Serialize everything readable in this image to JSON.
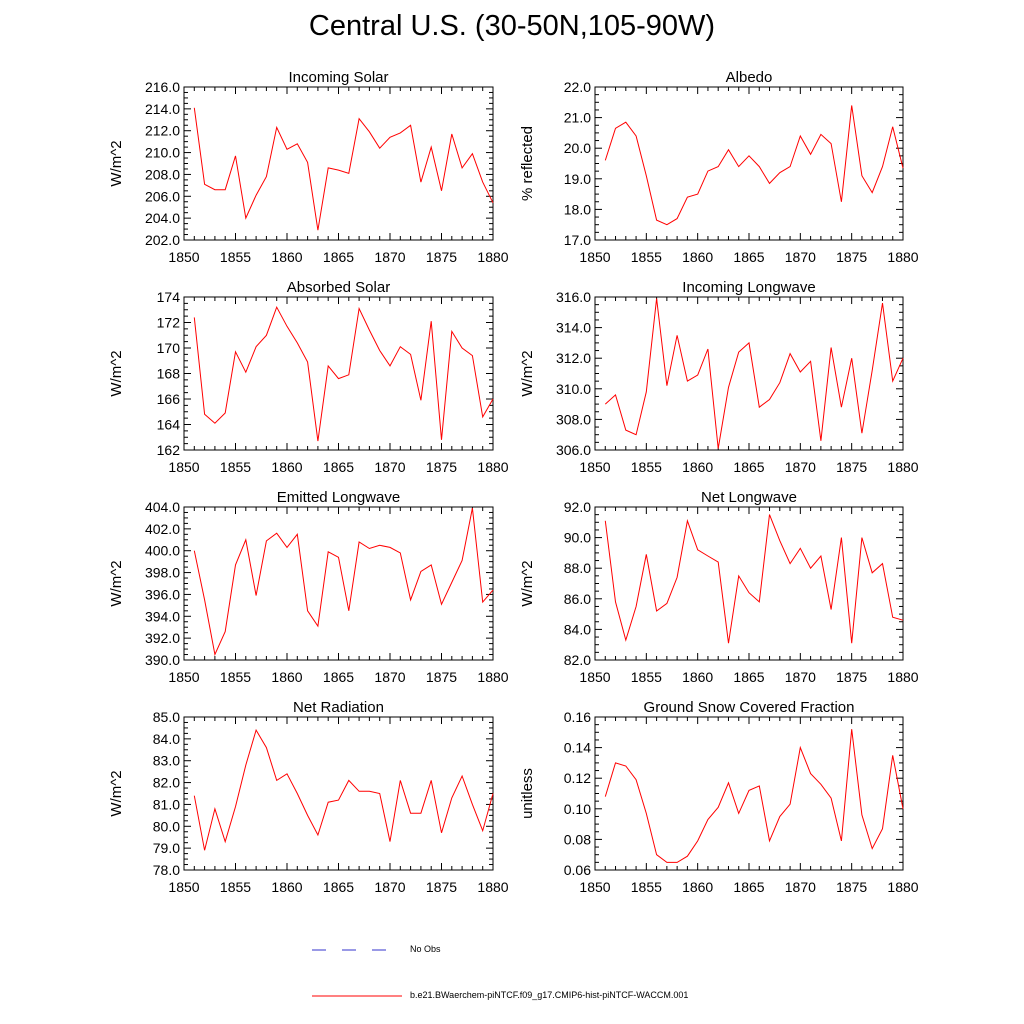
{
  "title": "Central U.S. (30-50N,105-90W)",
  "colors": {
    "model_line": "#ff0000",
    "obs_line": "#3333cc",
    "axis": "#000000"
  },
  "legend": {
    "obs_label": "No Obs",
    "model_label": "b.e21.BWaerchem-piNTCF.f09_g17.CMIP6-hist-piNTCF-WACCM.001"
  },
  "chart_data": [
    {
      "type": "line",
      "title": "Incoming Solar",
      "ylabel": "W/m^2",
      "xlim": [
        1850,
        1880
      ],
      "ylim": [
        202,
        216
      ],
      "xticks": [
        "1850",
        "1855",
        "1860",
        "1865",
        "1870",
        "1875",
        "1880"
      ],
      "yticks": [
        "202.0",
        "204.0",
        "206.0",
        "208.0",
        "210.0",
        "212.0",
        "214.0",
        "216.0"
      ],
      "x": [
        1851,
        1852,
        1853,
        1854,
        1855,
        1856,
        1857,
        1858,
        1859,
        1860,
        1861,
        1862,
        1863,
        1864,
        1865,
        1866,
        1867,
        1868,
        1869,
        1870,
        1871,
        1872,
        1873,
        1874,
        1875,
        1876,
        1877,
        1878,
        1879,
        1880
      ],
      "series": [
        {
          "values": [
            214.1,
            207.1,
            206.6,
            206.6,
            209.7,
            204.0,
            206.1,
            207.8,
            212.3,
            210.3,
            210.8,
            209.1,
            202.9,
            208.6,
            208.4,
            208.1,
            213.1,
            211.9,
            210.4,
            211.4,
            211.8,
            212.5,
            207.3,
            210.5,
            206.5,
            211.7,
            208.6,
            209.9,
            207.3,
            205.4
          ]
        }
      ]
    },
    {
      "type": "line",
      "title": "Albedo",
      "ylabel": "% reflected",
      "xlim": [
        1850,
        1880
      ],
      "ylim": [
        17,
        22
      ],
      "xticks": [
        "1850",
        "1855",
        "1860",
        "1865",
        "1870",
        "1875",
        "1880"
      ],
      "yticks": [
        "17.0",
        "18.0",
        "19.0",
        "20.0",
        "21.0",
        "22.0"
      ],
      "x": [
        1851,
        1852,
        1853,
        1854,
        1855,
        1856,
        1857,
        1858,
        1859,
        1860,
        1861,
        1862,
        1863,
        1864,
        1865,
        1866,
        1867,
        1868,
        1869,
        1870,
        1871,
        1872,
        1873,
        1874,
        1875,
        1876,
        1877,
        1878,
        1879,
        1880
      ],
      "series": [
        {
          "values": [
            19.6,
            20.65,
            20.85,
            20.4,
            19.1,
            17.65,
            17.5,
            17.7,
            18.4,
            18.5,
            19.25,
            19.4,
            19.95,
            19.4,
            19.75,
            19.4,
            18.85,
            19.2,
            19.4,
            20.4,
            19.8,
            20.45,
            20.15,
            18.25,
            21.4,
            19.1,
            18.55,
            19.4,
            20.7,
            19.35
          ]
        }
      ]
    },
    {
      "type": "line",
      "title": "Absorbed Solar",
      "ylabel": "W/m^2",
      "xlim": [
        1850,
        1880
      ],
      "ylim": [
        162,
        174
      ],
      "xticks": [
        "1850",
        "1855",
        "1860",
        "1865",
        "1870",
        "1875",
        "1880"
      ],
      "yticks": [
        "162",
        "164",
        "166",
        "168",
        "170",
        "172",
        "174"
      ],
      "x": [
        1851,
        1852,
        1853,
        1854,
        1855,
        1856,
        1857,
        1858,
        1859,
        1860,
        1861,
        1862,
        1863,
        1864,
        1865,
        1866,
        1867,
        1868,
        1869,
        1870,
        1871,
        1872,
        1873,
        1874,
        1875,
        1876,
        1877,
        1878,
        1879,
        1880
      ],
      "series": [
        {
          "values": [
            172.4,
            164.8,
            164.1,
            164.9,
            169.7,
            168.1,
            170.1,
            171.0,
            173.2,
            171.7,
            170.4,
            168.9,
            162.7,
            168.6,
            167.6,
            167.9,
            173.1,
            171.4,
            169.8,
            168.6,
            170.1,
            169.5,
            165.9,
            172.1,
            162.8,
            171.3,
            170.0,
            169.4,
            164.6,
            166.0
          ]
        }
      ]
    },
    {
      "type": "line",
      "title": "Incoming Longwave",
      "ylabel": "W/m^2",
      "xlim": [
        1850,
        1880
      ],
      "ylim": [
        306,
        316
      ],
      "xticks": [
        "1850",
        "1855",
        "1860",
        "1865",
        "1870",
        "1875",
        "1880"
      ],
      "yticks": [
        "306.0",
        "308.0",
        "310.0",
        "312.0",
        "314.0",
        "316.0"
      ],
      "x": [
        1851,
        1852,
        1853,
        1854,
        1855,
        1856,
        1857,
        1858,
        1859,
        1860,
        1861,
        1862,
        1863,
        1864,
        1865,
        1866,
        1867,
        1868,
        1869,
        1870,
        1871,
        1872,
        1873,
        1874,
        1875,
        1876,
        1877,
        1878,
        1879,
        1880
      ],
      "series": [
        {
          "values": [
            309.0,
            309.6,
            307.3,
            307.0,
            309.8,
            315.9,
            310.2,
            313.5,
            310.5,
            310.9,
            312.6,
            306.1,
            310.1,
            312.4,
            313.0,
            308.8,
            309.3,
            310.4,
            312.3,
            311.1,
            311.8,
            306.6,
            312.7,
            308.8,
            312.0,
            307.1,
            311.2,
            315.6,
            310.5,
            312.0
          ]
        }
      ]
    },
    {
      "type": "line",
      "title": "Emitted Longwave",
      "ylabel": "W/m^2",
      "xlim": [
        1850,
        1880
      ],
      "ylim": [
        390,
        404
      ],
      "xticks": [
        "1850",
        "1855",
        "1860",
        "1865",
        "1870",
        "1875",
        "1880"
      ],
      "yticks": [
        "390.0",
        "392.0",
        "394.0",
        "396.0",
        "398.0",
        "400.0",
        "402.0",
        "404.0"
      ],
      "x": [
        1851,
        1852,
        1853,
        1854,
        1855,
        1856,
        1857,
        1858,
        1859,
        1860,
        1861,
        1862,
        1863,
        1864,
        1865,
        1866,
        1867,
        1868,
        1869,
        1870,
        1871,
        1872,
        1873,
        1874,
        1875,
        1876,
        1877,
        1878,
        1879,
        1880
      ],
      "series": [
        {
          "values": [
            400.0,
            395.5,
            390.5,
            392.6,
            398.7,
            401.0,
            395.9,
            400.9,
            401.6,
            400.3,
            401.5,
            394.5,
            393.1,
            399.9,
            399.4,
            394.5,
            400.8,
            400.2,
            400.5,
            400.3,
            399.8,
            395.5,
            398.1,
            398.7,
            395.1,
            397.1,
            399.1,
            403.9,
            395.3,
            396.4
          ]
        }
      ]
    },
    {
      "type": "line",
      "title": "Net Longwave",
      "ylabel": "W/m^2",
      "xlim": [
        1850,
        1880
      ],
      "ylim": [
        82,
        92
      ],
      "xticks": [
        "1850",
        "1855",
        "1860",
        "1865",
        "1870",
        "1875",
        "1880"
      ],
      "yticks": [
        "82.0",
        "84.0",
        "86.0",
        "88.0",
        "90.0",
        "92.0"
      ],
      "x": [
        1851,
        1852,
        1853,
        1854,
        1855,
        1856,
        1857,
        1858,
        1859,
        1860,
        1861,
        1862,
        1863,
        1864,
        1865,
        1866,
        1867,
        1868,
        1869,
        1870,
        1871,
        1872,
        1873,
        1874,
        1875,
        1876,
        1877,
        1878,
        1879,
        1880
      ],
      "series": [
        {
          "values": [
            91.1,
            85.8,
            83.3,
            85.5,
            88.9,
            85.2,
            85.7,
            87.4,
            91.1,
            89.2,
            88.8,
            88.4,
            83.1,
            87.5,
            86.4,
            85.8,
            91.5,
            89.8,
            88.3,
            89.3,
            88.0,
            88.8,
            85.3,
            90.0,
            83.1,
            90.0,
            87.7,
            88.3,
            84.8,
            84.6
          ]
        }
      ]
    },
    {
      "type": "line",
      "title": "Net Radiation",
      "ylabel": "W/m^2",
      "xlim": [
        1850,
        1880
      ],
      "ylim": [
        78,
        85
      ],
      "xticks": [
        "1850",
        "1855",
        "1860",
        "1865",
        "1870",
        "1875",
        "1880"
      ],
      "yticks": [
        "78.0",
        "79.0",
        "80.0",
        "81.0",
        "82.0",
        "83.0",
        "84.0",
        "85.0"
      ],
      "x": [
        1851,
        1852,
        1853,
        1854,
        1855,
        1856,
        1857,
        1858,
        1859,
        1860,
        1861,
        1862,
        1863,
        1864,
        1865,
        1866,
        1867,
        1868,
        1869,
        1870,
        1871,
        1872,
        1873,
        1874,
        1875,
        1876,
        1877,
        1878,
        1879,
        1880
      ],
      "series": [
        {
          "values": [
            81.4,
            78.9,
            80.8,
            79.3,
            80.9,
            82.8,
            84.4,
            83.6,
            82.1,
            82.4,
            81.5,
            80.5,
            79.6,
            81.1,
            81.2,
            82.1,
            81.6,
            81.6,
            81.5,
            79.3,
            82.1,
            80.6,
            80.6,
            82.1,
            79.7,
            81.3,
            82.3,
            81.0,
            79.8,
            81.5
          ]
        }
      ]
    },
    {
      "type": "line",
      "title": "Ground Snow Covered Fraction",
      "ylabel": "unitless",
      "xlim": [
        1850,
        1880
      ],
      "ylim": [
        0.06,
        0.16
      ],
      "xticks": [
        "1850",
        "1855",
        "1860",
        "1865",
        "1870",
        "1875",
        "1880"
      ],
      "yticks": [
        "0.06",
        "0.08",
        "0.10",
        "0.12",
        "0.14",
        "0.16"
      ],
      "x": [
        1851,
        1852,
        1853,
        1854,
        1855,
        1856,
        1857,
        1858,
        1859,
        1860,
        1861,
        1862,
        1863,
        1864,
        1865,
        1866,
        1867,
        1868,
        1869,
        1870,
        1871,
        1872,
        1873,
        1874,
        1875,
        1876,
        1877,
        1878,
        1879,
        1880
      ],
      "series": [
        {
          "values": [
            0.108,
            0.13,
            0.128,
            0.119,
            0.097,
            0.07,
            0.065,
            0.065,
            0.069,
            0.079,
            0.093,
            0.101,
            0.117,
            0.097,
            0.112,
            0.115,
            0.079,
            0.095,
            0.103,
            0.14,
            0.123,
            0.116,
            0.107,
            0.079,
            0.152,
            0.096,
            0.074,
            0.087,
            0.135,
            0.1
          ]
        }
      ]
    }
  ]
}
